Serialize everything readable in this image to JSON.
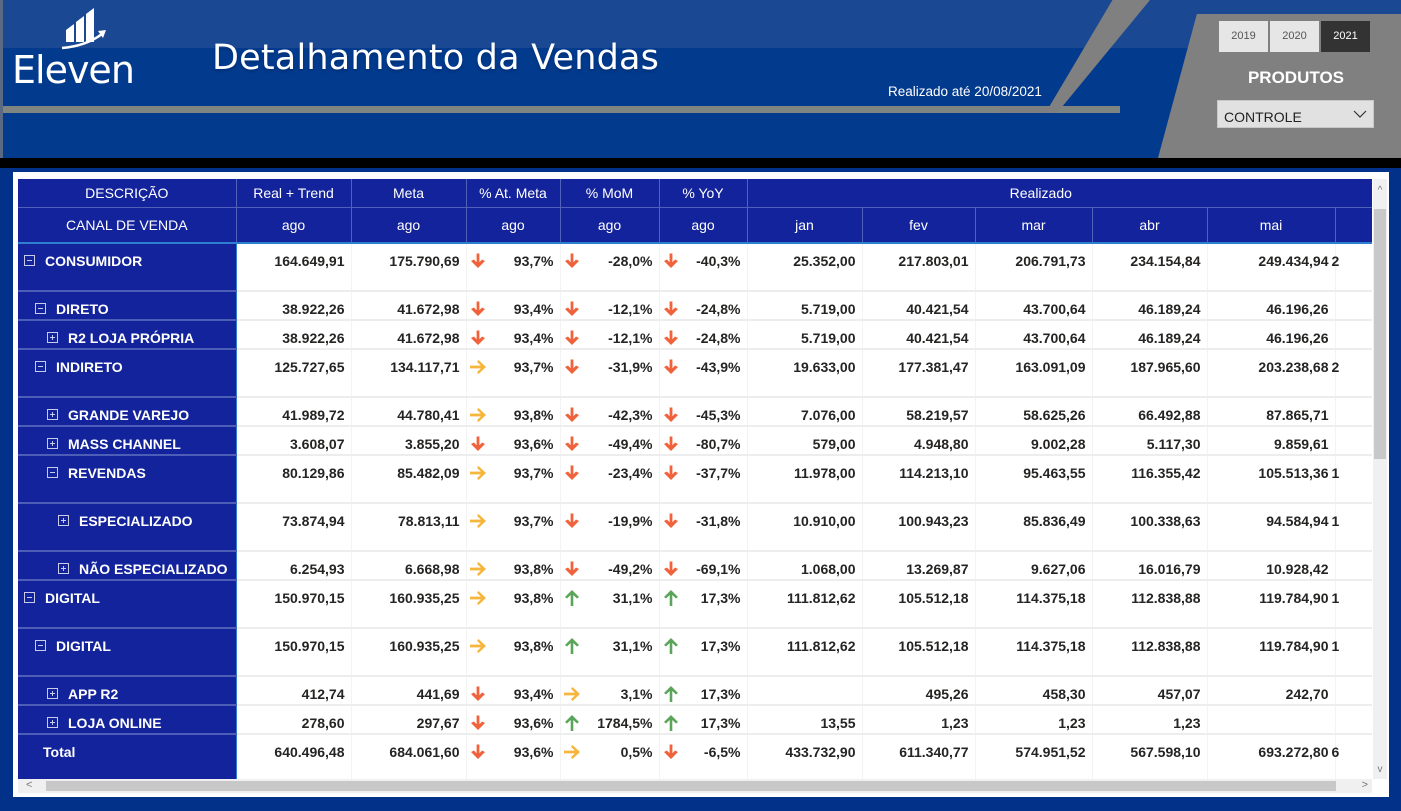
{
  "header": {
    "logo_text": "Eleven",
    "title": "Detalhamento da Vendas",
    "realizado_ate": "Realizado até 20/08/2021",
    "years": [
      {
        "label": "2019",
        "active": false
      },
      {
        "label": "2020",
        "active": false
      },
      {
        "label": "2021",
        "active": true
      }
    ],
    "produtos_label": "PRODUTOS",
    "produtos_selected": "CONTROLE"
  },
  "colors": {
    "header_blue": "#023a8e",
    "table_header_blue": "#13239b",
    "gray_accent": "#808080",
    "arrow_down": "#f0623b",
    "arrow_right": "#f6b53c",
    "arrow_up": "#5aa55a"
  },
  "table": {
    "header_row1": {
      "descricao": "DESCRIÇÃO",
      "real_trend": "Real + Trend",
      "meta": "Meta",
      "at_meta": "% At. Meta",
      "mom": "% MoM",
      "yoy": "% YoY",
      "realizado": "Realizado"
    },
    "header_row2": {
      "canal": "CANAL DE VENDA",
      "real_trend": "ago",
      "meta": "ago",
      "at_meta": "ago",
      "mom": "ago",
      "yoy": "ago",
      "months": [
        "jan",
        "fev",
        "mar",
        "abr",
        "mai",
        ""
      ]
    },
    "rows": [
      {
        "label": "CONSUMIDOR",
        "level": 1,
        "toggle": "minus",
        "tall": true,
        "real_trend": "164.649,91",
        "meta": "175.790,69",
        "at_meta": "93,7%",
        "at_meta_icon": "down",
        "mom": "-28,0%",
        "mom_icon": "down",
        "yoy": "-40,3%",
        "yoy_icon": "down",
        "jan": "25.352,00",
        "fev": "217.803,01",
        "mar": "206.791,73",
        "abr": "234.154,84",
        "mai": "249.434,94",
        "jun": "2"
      },
      {
        "label": "DIRETO",
        "level": 2,
        "toggle": "minus",
        "tall": false,
        "real_trend": "38.922,26",
        "meta": "41.672,98",
        "at_meta": "93,4%",
        "at_meta_icon": "down",
        "mom": "-12,1%",
        "mom_icon": "down",
        "yoy": "-24,8%",
        "yoy_icon": "down",
        "jan": "5.719,00",
        "fev": "40.421,54",
        "mar": "43.700,64",
        "abr": "46.189,24",
        "mai": "46.196,26",
        "jun": ""
      },
      {
        "label": "R2 LOJA PRÓPRIA",
        "level": 3,
        "toggle": "plus",
        "tall": false,
        "real_trend": "38.922,26",
        "meta": "41.672,98",
        "at_meta": "93,4%",
        "at_meta_icon": "down",
        "mom": "-12,1%",
        "mom_icon": "down",
        "yoy": "-24,8%",
        "yoy_icon": "down",
        "jan": "5.719,00",
        "fev": "40.421,54",
        "mar": "43.700,64",
        "abr": "46.189,24",
        "mai": "46.196,26",
        "jun": ""
      },
      {
        "label": "INDIRETO",
        "level": 2,
        "toggle": "minus",
        "tall": true,
        "real_trend": "125.727,65",
        "meta": "134.117,71",
        "at_meta": "93,7%",
        "at_meta_icon": "right",
        "mom": "-31,9%",
        "mom_icon": "down",
        "yoy": "-43,9%",
        "yoy_icon": "down",
        "jan": "19.633,00",
        "fev": "177.381,47",
        "mar": "163.091,09",
        "abr": "187.965,60",
        "mai": "203.238,68",
        "jun": "2"
      },
      {
        "label": "GRANDE VAREJO",
        "level": 3,
        "toggle": "plus",
        "tall": false,
        "real_trend": "41.989,72",
        "meta": "44.780,41",
        "at_meta": "93,8%",
        "at_meta_icon": "right",
        "mom": "-42,3%",
        "mom_icon": "down",
        "yoy": "-45,3%",
        "yoy_icon": "down",
        "jan": "7.076,00",
        "fev": "58.219,57",
        "mar": "58.625,26",
        "abr": "66.492,88",
        "mai": "87.865,71",
        "jun": ""
      },
      {
        "label": "MASS CHANNEL",
        "level": 3,
        "toggle": "plus",
        "tall": false,
        "real_trend": "3.608,07",
        "meta": "3.855,20",
        "at_meta": "93,6%",
        "at_meta_icon": "down",
        "mom": "-49,4%",
        "mom_icon": "down",
        "yoy": "-80,7%",
        "yoy_icon": "down",
        "jan": "579,00",
        "fev": "4.948,80",
        "mar": "9.002,28",
        "abr": "5.117,30",
        "mai": "9.859,61",
        "jun": ""
      },
      {
        "label": "REVENDAS",
        "level": 3,
        "toggle": "minus",
        "tall": true,
        "real_trend": "80.129,86",
        "meta": "85.482,09",
        "at_meta": "93,7%",
        "at_meta_icon": "right",
        "mom": "-23,4%",
        "mom_icon": "down",
        "yoy": "-37,7%",
        "yoy_icon": "down",
        "jan": "11.978,00",
        "fev": "114.213,10",
        "mar": "95.463,55",
        "abr": "116.355,42",
        "mai": "105.513,36",
        "jun": "1"
      },
      {
        "label": "ESPECIALIZADO",
        "level": 4,
        "toggle": "plus",
        "tall": true,
        "real_trend": "73.874,94",
        "meta": "78.813,11",
        "at_meta": "93,7%",
        "at_meta_icon": "right",
        "mom": "-19,9%",
        "mom_icon": "down",
        "yoy": "-31,8%",
        "yoy_icon": "down",
        "jan": "10.910,00",
        "fev": "100.943,23",
        "mar": "85.836,49",
        "abr": "100.338,63",
        "mai": "94.584,94",
        "jun": "1"
      },
      {
        "label": "NÃO ESPECIALIZADO",
        "level": 4,
        "toggle": "plus",
        "tall": false,
        "real_trend": "6.254,93",
        "meta": "6.668,98",
        "at_meta": "93,8%",
        "at_meta_icon": "right",
        "mom": "-49,2%",
        "mom_icon": "down",
        "yoy": "-69,1%",
        "yoy_icon": "down",
        "jan": "1.068,00",
        "fev": "13.269,87",
        "mar": "9.627,06",
        "abr": "16.016,79",
        "mai": "10.928,42",
        "jun": ""
      },
      {
        "label": "DIGITAL",
        "level": 1,
        "toggle": "minus",
        "tall": true,
        "real_trend": "150.970,15",
        "meta": "160.935,25",
        "at_meta": "93,8%",
        "at_meta_icon": "right",
        "mom": "31,1%",
        "mom_icon": "up",
        "yoy": "17,3%",
        "yoy_icon": "up",
        "jan": "111.812,62",
        "fev": "105.512,18",
        "mar": "114.375,18",
        "abr": "112.838,88",
        "mai": "119.784,90",
        "jun": "1"
      },
      {
        "label": "DIGITAL",
        "level": 2,
        "toggle": "minus",
        "tall": true,
        "real_trend": "150.970,15",
        "meta": "160.935,25",
        "at_meta": "93,8%",
        "at_meta_icon": "right",
        "mom": "31,1%",
        "mom_icon": "up",
        "yoy": "17,3%",
        "yoy_icon": "up",
        "jan": "111.812,62",
        "fev": "105.512,18",
        "mar": "114.375,18",
        "abr": "112.838,88",
        "mai": "119.784,90",
        "jun": "1"
      },
      {
        "label": "APP R2",
        "level": 3,
        "toggle": "plus",
        "tall": false,
        "real_trend": "412,74",
        "meta": "441,69",
        "at_meta": "93,4%",
        "at_meta_icon": "down",
        "mom": "3,1%",
        "mom_icon": "right",
        "yoy": "17,3%",
        "yoy_icon": "up",
        "jan": "",
        "fev": "495,26",
        "mar": "458,30",
        "abr": "457,07",
        "mai": "242,70",
        "jun": ""
      },
      {
        "label": "LOJA ONLINE",
        "level": 3,
        "toggle": "plus",
        "tall": false,
        "real_trend": "278,60",
        "meta": "297,67",
        "at_meta": "93,6%",
        "at_meta_icon": "down",
        "mom": "1784,5%",
        "mom_icon": "up",
        "yoy": "17,3%",
        "yoy_icon": "up",
        "jan": "13,55",
        "fev": "1,23",
        "mar": "1,23",
        "abr": "1,23",
        "mai": "",
        "jun": ""
      },
      {
        "label": "Total",
        "level": 0,
        "toggle": "none",
        "tall": true,
        "real_trend": "640.496,48",
        "meta": "684.061,60",
        "at_meta": "93,6%",
        "at_meta_icon": "down",
        "mom": "0,5%",
        "mom_icon": "right",
        "yoy": "-6,5%",
        "yoy_icon": "down",
        "jan": "433.732,90",
        "fev": "611.340,77",
        "mar": "574.951,52",
        "abr": "567.598,10",
        "mai": "693.272,80",
        "jun": "6"
      }
    ]
  },
  "scrollbars": {
    "up": "^",
    "down": "v",
    "left": "<",
    "right": ">"
  }
}
